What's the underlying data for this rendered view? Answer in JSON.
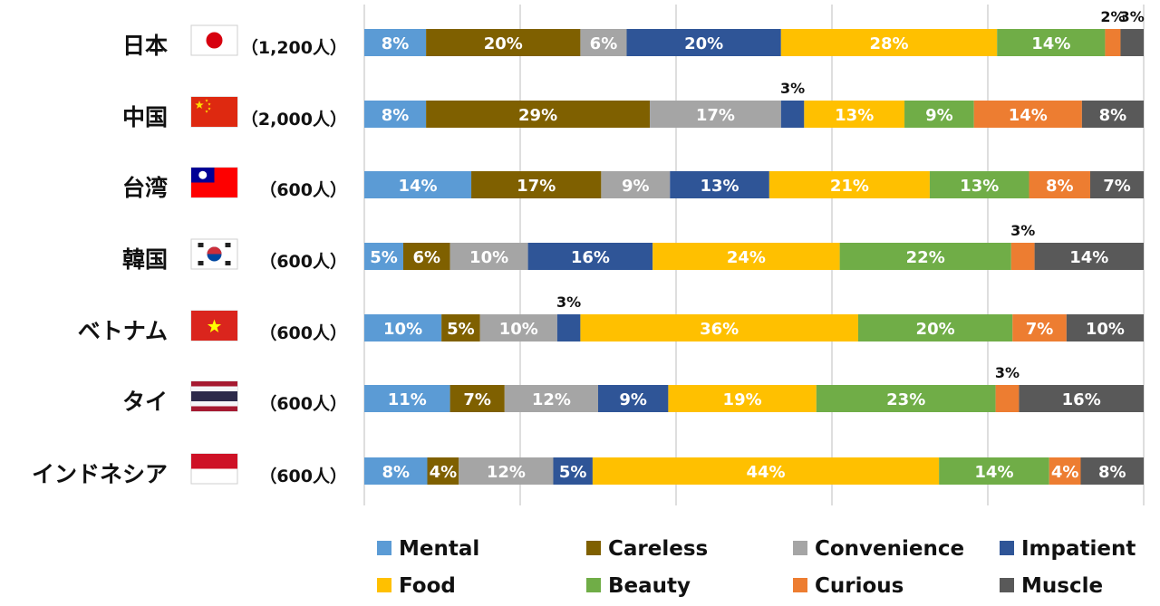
{
  "chart_data": {
    "type": "bar",
    "orientation": "horizontal",
    "stacked": true,
    "percent": true,
    "title": "",
    "xlabel": "",
    "ylabel": "",
    "xlim": [
      0,
      100
    ],
    "grid": true,
    "legend_position": "bottom",
    "categories": [
      {
        "name": "日本",
        "count": "（1,200人）",
        "flag": "japan-flag-icon"
      },
      {
        "name": "中国",
        "count": "（2,000人）",
        "flag": "china-flag-icon"
      },
      {
        "name": "台湾",
        "count": "（600人）",
        "flag": "taiwan-flag-icon"
      },
      {
        "name": "韓国",
        "count": "（600人）",
        "flag": "korea-flag-icon"
      },
      {
        "name": "ベトナム",
        "count": "（600人）",
        "flag": "vietnam-flag-icon"
      },
      {
        "name": "タイ",
        "count": "（600人）",
        "flag": "thailand-flag-icon"
      },
      {
        "name": "インドネシア",
        "count": "（600人）",
        "flag": "indonesia-flag-icon"
      }
    ],
    "series": [
      {
        "name": "Mental",
        "color": "#5b9bd5",
        "values": [
          8,
          8,
          14,
          5,
          10,
          11,
          8
        ]
      },
      {
        "name": "Careless",
        "color": "#7f6000",
        "values": [
          20,
          29,
          17,
          6,
          5,
          7,
          4
        ]
      },
      {
        "name": "Convenience",
        "color": "#a5a5a5",
        "values": [
          6,
          17,
          9,
          10,
          10,
          12,
          12
        ]
      },
      {
        "name": "Impatient",
        "color": "#2f5597",
        "values": [
          20,
          3,
          13,
          16,
          3,
          9,
          5
        ]
      },
      {
        "name": "Food",
        "color": "#ffc000",
        "values": [
          28,
          13,
          21,
          24,
          36,
          19,
          44
        ]
      },
      {
        "name": "Beauty",
        "color": "#70ad47",
        "values": [
          14,
          9,
          13,
          22,
          20,
          23,
          14
        ]
      },
      {
        "name": "Curious",
        "color": "#ed7d31",
        "values": [
          2,
          14,
          8,
          3,
          7,
          3,
          4
        ]
      },
      {
        "name": "Muscle",
        "color": "#595959",
        "values": [
          3,
          8,
          7,
          14,
          10,
          16,
          8
        ]
      }
    ],
    "outside_labels": [
      {
        "category": 0,
        "series": 6
      },
      {
        "category": 0,
        "series": 7
      },
      {
        "category": 1,
        "series": 3
      },
      {
        "category": 3,
        "series": 6
      },
      {
        "category": 4,
        "series": 3
      },
      {
        "category": 5,
        "series": 6
      }
    ]
  }
}
